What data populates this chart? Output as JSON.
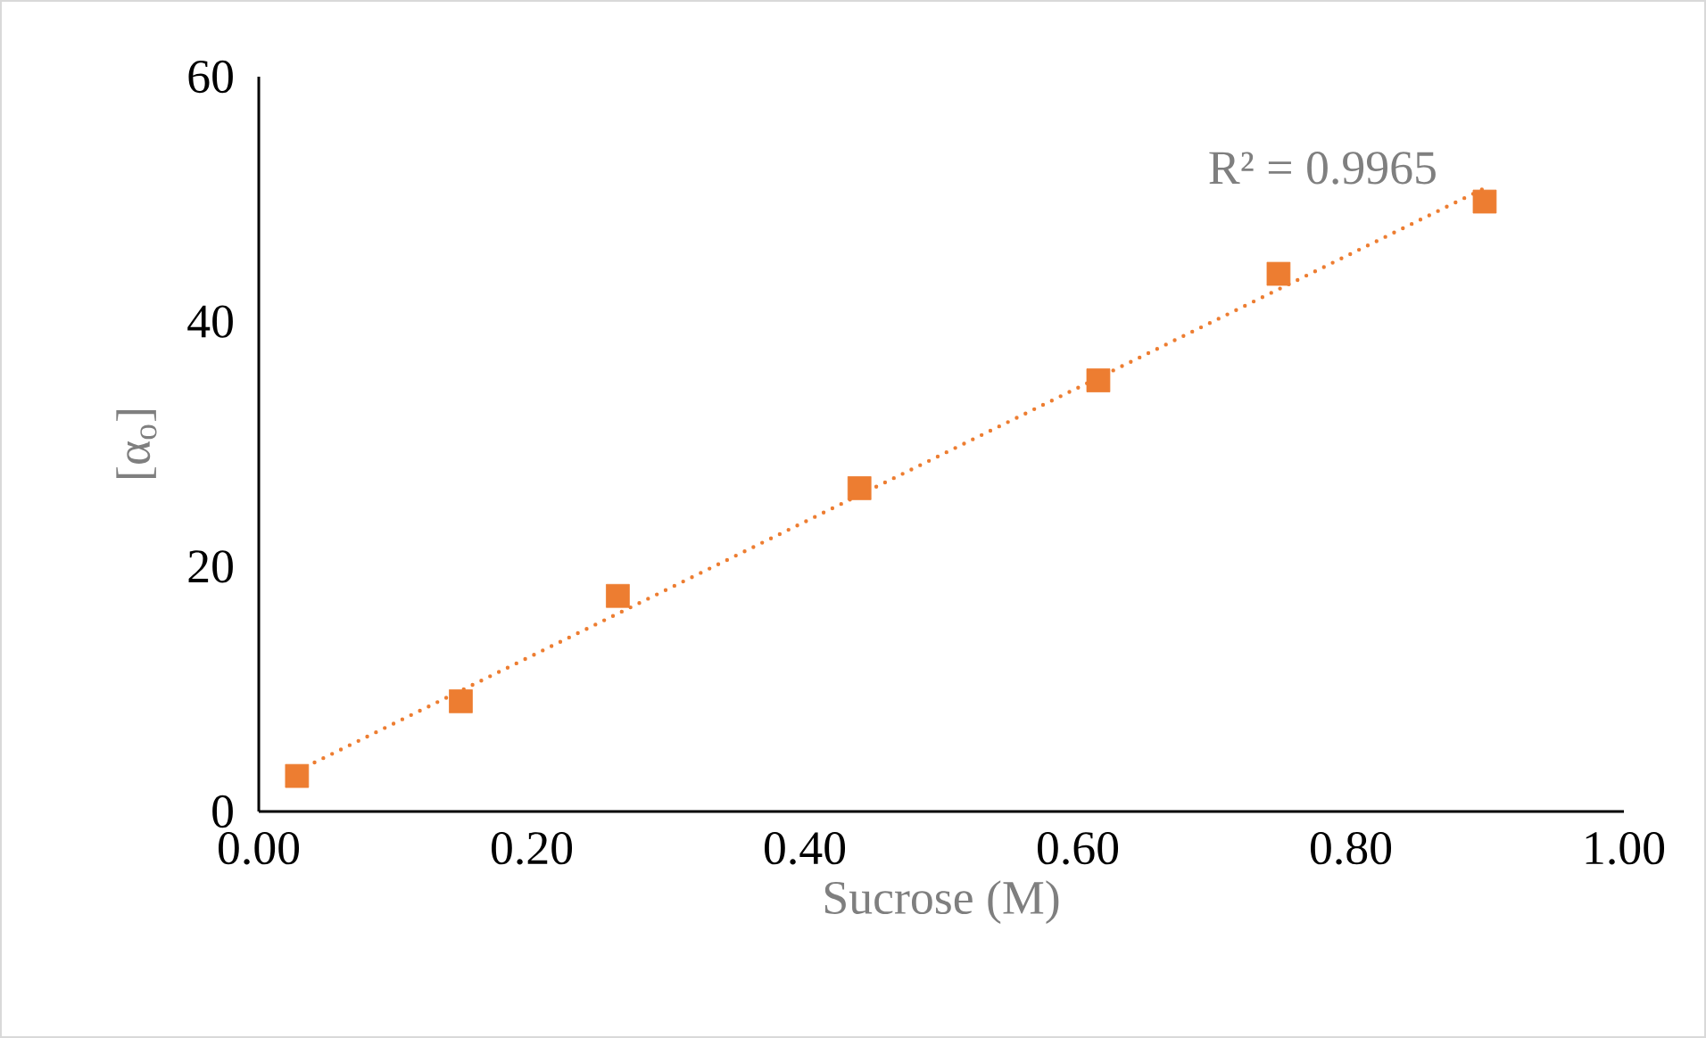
{
  "chart_data": {
    "type": "scatter",
    "xlabel": "Sucrose (M)",
    "ylabel": "[α$_{o}$]",
    "xlim": [
      0,
      1
    ],
    "ylim": [
      0,
      60
    ],
    "xticks": [
      {
        "value": 0,
        "label": "0.00"
      },
      {
        "value": 0.2,
        "label": "0.20"
      },
      {
        "value": 0.4,
        "label": "0.40"
      },
      {
        "value": 0.6,
        "label": "0.60"
      },
      {
        "value": 0.8,
        "label": "0.80"
      },
      {
        "value": 1,
        "label": "1.00"
      }
    ],
    "yticks": [
      0,
      20,
      40,
      60
    ],
    "series": [
      {
        "color": "#ed7d31",
        "marker": "square",
        "x": [
          0.028,
          0.148,
          0.263,
          0.44,
          0.615,
          0.747,
          0.898
        ],
        "values": [
          2.9,
          9.0,
          17.6,
          26.4,
          35.2,
          43.9,
          49.8
        ]
      },
      {
        "type": "line",
        "color": "#ed7d31",
        "marker": "none",
        "line_style": "dotted",
        "x": [
          0.028,
          0.898
        ],
        "values": [
          3.3,
          50.9
        ]
      }
    ],
    "annotations": [
      "R² = 0.9965"
    ]
  }
}
